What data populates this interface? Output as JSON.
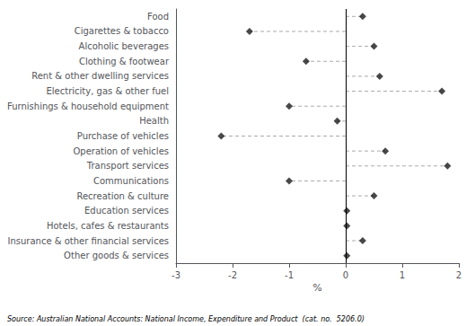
{
  "chart_data": {
    "type": "lollipop",
    "categories": [
      "Food",
      "Cigarettes & tobacco",
      "Alcoholic beverages",
      "Clothing & footwear",
      "Rent & other dwelling services",
      "Electricity, gas & other fuel",
      "Furnishings & household equipment",
      "Health",
      "Purchase of vehicles",
      "Operation of vehicles",
      "Transport services",
      "Communications",
      "Recreation & culture",
      "Education services",
      "Hotels, cafes & restaurants",
      "Insurance & other financial services",
      "Other goods & services"
    ],
    "values": [
      0.3,
      -1.7,
      0.5,
      -0.7,
      0.6,
      1.7,
      -1.0,
      -0.15,
      -2.2,
      0.7,
      1.8,
      -1.0,
      0.5,
      0.02,
      0.02,
      0.3,
      0.02
    ],
    "orientation": "horizontal",
    "xlim": [
      -3,
      2
    ],
    "xticks": [
      -3,
      -2,
      -1,
      0,
      1,
      2
    ],
    "xlabel": "%",
    "color": "#1a1a1a",
    "marker": "diamond",
    "line_style": "dashed",
    "grid": false,
    "annotation": "Source: Australian National Accounts: National Income, Expenditure and Product  (cat. no.  5206.0)"
  }
}
